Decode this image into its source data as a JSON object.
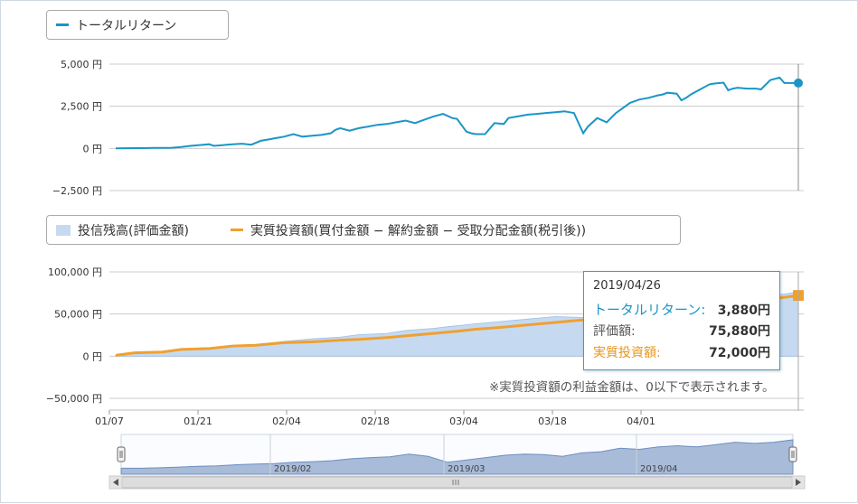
{
  "top_legend": {
    "series_name": "トータルリターン",
    "color": "#1a96c6"
  },
  "bottom_legend": {
    "area_name": "投信残高(評価金額)",
    "area_color": "#c5daf1",
    "line_name": "実質投資額(買付金額 − 解約金額 − 受取分配金額(税引後))",
    "line_color": "#f0a030"
  },
  "tooltip": {
    "date": "2019/04/26",
    "rows": [
      {
        "label": "トータルリターン:",
        "value": "3,880円",
        "color": "#1a96c6"
      },
      {
        "label": "評価額:",
        "value": "75,880円",
        "color": "#333333"
      },
      {
        "label": "実質投資額:",
        "value": "72,000円",
        "color": "#e8951a"
      }
    ]
  },
  "note": "※実質投資額の利益金額は、0以下で表示されます。",
  "chart_data": [
    {
      "type": "line",
      "series": [
        {
          "name": "トータルリターン",
          "x": [
            0,
            2,
            4,
            6,
            8,
            10,
            12,
            14,
            16,
            18,
            20,
            21,
            23,
            25,
            27,
            29,
            31,
            33,
            34,
            36,
            38,
            40,
            42,
            44,
            46,
            47,
            48,
            50,
            52,
            54,
            56,
            58,
            60,
            62,
            64,
            66,
            68,
            70,
            72,
            73,
            75,
            76,
            77,
            79,
            81,
            83,
            84,
            86,
            88,
            90,
            92,
            94,
            96,
            97,
            98,
            100,
            101,
            103,
            105,
            107,
            108,
            110,
            112,
            114,
            116,
            117,
            118,
            120,
            121,
            122,
            123,
            125,
            127,
            128,
            130,
            131,
            132,
            133,
            135,
            137,
            138,
            140,
            142,
            143,
            144,
            146
          ],
          "values": [
            0,
            10,
            20,
            20,
            30,
            30,
            40,
            90,
            150,
            200,
            250,
            150,
            200,
            250,
            280,
            220,
            450,
            550,
            600,
            700,
            850,
            700,
            750,
            800,
            900,
            1100,
            1200,
            1050,
            1200,
            1300,
            1400,
            1450,
            1550,
            1650,
            1500,
            1700,
            1900,
            2050,
            1800,
            1750,
            1000,
            900,
            850,
            850,
            1500,
            1450,
            1800,
            1900,
            2000,
            2050,
            2100,
            2150,
            2200,
            2150,
            2100,
            900,
            1300,
            1800,
            1550,
            2100,
            2300,
            2700,
            2900,
            3000,
            3150,
            3200,
            3300,
            3250,
            2850,
            3000,
            3200,
            3500,
            3800,
            3850,
            3900,
            3450,
            3550,
            3600,
            3550,
            3550,
            3500,
            4050,
            4200,
            3880,
            3880,
            3880
          ]
        }
      ],
      "ylim": [
        -2500,
        5000
      ],
      "yticks": [
        "5,000 円",
        "2,500 円",
        "0 円",
        "−2,500 円"
      ],
      "ytick_values": [
        5000,
        2500,
        0,
        -2500
      ],
      "grid": true
    },
    {
      "type": "area",
      "series": [
        {
          "name": "投信残高(評価金額)",
          "x": [
            0,
            4,
            10,
            14,
            20,
            25,
            30,
            36,
            42,
            48,
            52,
            58,
            62,
            68,
            72,
            77,
            82,
            88,
            94,
            100,
            103,
            106,
            110,
            114,
            118,
            122,
            126,
            130,
            134,
            138,
            142,
            146
          ],
          "values": [
            1000,
            4500,
            5000,
            8500,
            9500,
            12800,
            14000,
            17500,
            20500,
            22500,
            25500,
            27000,
            30500,
            33000,
            35500,
            38500,
            41000,
            44000,
            47000,
            46000,
            50000,
            49000,
            55000,
            56000,
            59000,
            60000,
            63000,
            66000,
            69000,
            70000,
            73000,
            75880
          ]
        },
        {
          "name": "実質投資額(買付金額 − 解約金額 − 受取分配金額(税引後))",
          "x": [
            0,
            4,
            10,
            14,
            20,
            25,
            30,
            36,
            42,
            48,
            52,
            58,
            62,
            68,
            72,
            77,
            82,
            88,
            94,
            100,
            106,
            112,
            118,
            124,
            130,
            136,
            142,
            146
          ],
          "values": [
            1000,
            4000,
            5000,
            8000,
            9000,
            12000,
            13000,
            16000,
            17000,
            19000,
            20000,
            22000,
            24000,
            27000,
            29000,
            32000,
            34000,
            37000,
            40000,
            43000,
            46000,
            49000,
            53000,
            57000,
            61000,
            65000,
            69000,
            72000
          ]
        }
      ],
      "ylim": [
        -50000,
        100000
      ],
      "yticks": [
        "100,000 円",
        "50,000 円",
        "0 円",
        "−50,000 円"
      ],
      "ytick_values": [
        100000,
        50000,
        0,
        -50000
      ],
      "xticks": [
        "01/07",
        "01/21",
        "02/04",
        "02/18",
        "03/04",
        "03/18",
        "04/01"
      ],
      "grid": true
    },
    {
      "type": "area",
      "series": [
        {
          "name": "navigator",
          "values": [
            0.1,
            0.1,
            0.12,
            0.15,
            0.18,
            0.2,
            0.25,
            0.28,
            0.3,
            0.35,
            0.38,
            0.42,
            0.5,
            0.55,
            0.58,
            0.7,
            0.6,
            0.35,
            0.45,
            0.55,
            0.65,
            0.7,
            0.68,
            0.6,
            0.75,
            0.8,
            0.95,
            0.9,
            1.0,
            1.05,
            1.0,
            1.1,
            1.2,
            1.15,
            1.2,
            1.3
          ]
        }
      ],
      "xticks": [
        "2019/02",
        "2019/03",
        "2019/04"
      ]
    }
  ]
}
